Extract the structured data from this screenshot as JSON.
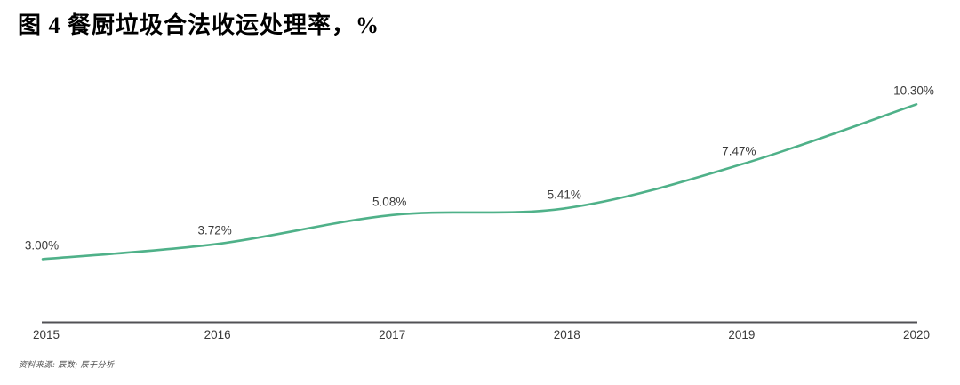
{
  "page": {
    "title": "图 4 餐厨垃圾合法收运处理率，%",
    "source_note": "资料来源: 辰数; 辰于分析"
  },
  "chart_data": {
    "type": "line",
    "title": "图 4 餐厨垃圾合法收运处理率，%",
    "categories": [
      "2015",
      "2016",
      "2017",
      "2018",
      "2019",
      "2020"
    ],
    "series": [
      {
        "name": "餐厨垃圾合法收运处理率",
        "values": [
          3.0,
          3.72,
          5.08,
          5.41,
          7.47,
          10.3
        ]
      }
    ],
    "point_labels": [
      "3.00%",
      "3.72%",
      "5.08%",
      "5.41%",
      "7.47%",
      "10.30%"
    ],
    "xlabel": "",
    "ylabel": "",
    "unit": "%",
    "ylim": [
      0,
      11.6
    ],
    "grid": false,
    "legend_position": "none",
    "colors": {
      "line": "#4fb189",
      "axis": "#515155",
      "labels": "#3b3b3b"
    }
  }
}
